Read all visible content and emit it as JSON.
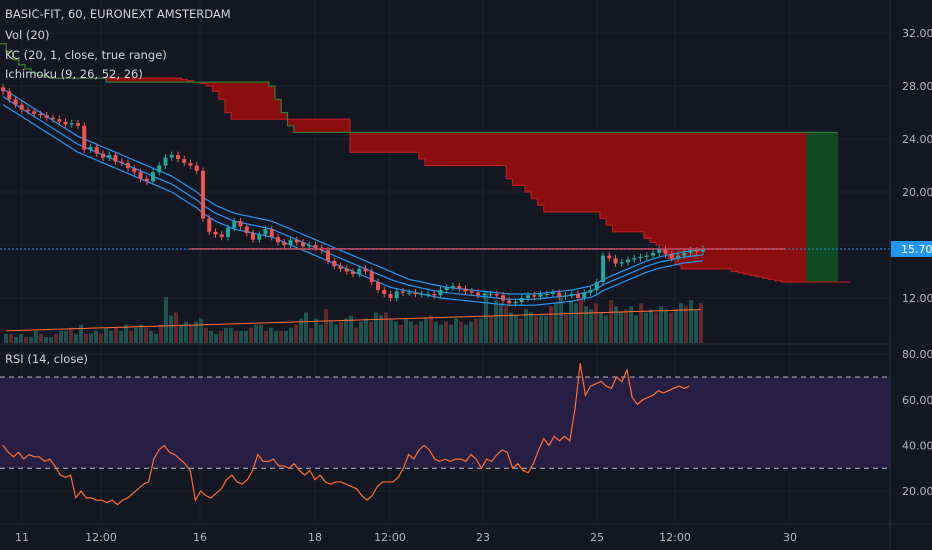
{
  "legend": {
    "symbol": "BASIC-FIT, 60, EURONEXT AMSTERDAM",
    "vol": "Vol (20)",
    "kc": "KC (20, 1, close, true range)",
    "ichimoku": "Ichimoku (9, 26, 52, 26)",
    "rsi": "RSI (14, close)"
  },
  "price_axis": {
    "ticks": [
      "32.00",
      "28.00",
      "24.00",
      "20.00",
      "12.00"
    ],
    "last_price": "15.70"
  },
  "rsi_axis": {
    "ticks": [
      "80.00",
      "60.00",
      "40.00",
      "20.00"
    ]
  },
  "time_axis": {
    "labels": [
      "11",
      "12:00",
      "16",
      "18",
      "12:00",
      "23",
      "25",
      "12:00",
      "30"
    ]
  },
  "colors": {
    "background": "#131722",
    "up": "#26a69a",
    "down": "#ef5350",
    "cloud_bear": "#8b0e0e",
    "cloud_bull": "#0d4a1f",
    "kc": "#2196f3",
    "rsi": "#ff6d2e",
    "rsi_band": "#2a1f48",
    "last_price": "#2196f3",
    "resistance": "#ff2b2b"
  },
  "chart_data": {
    "type": "candlestick",
    "price": {
      "ylim": [
        8.6,
        34.5
      ],
      "series": {
        "close": [
          27.6,
          27.0,
          26.6,
          26.2,
          26.1,
          25.9,
          25.8,
          25.6,
          25.5,
          25.3,
          25.1,
          25.2,
          25.0,
          23.2,
          23.4,
          22.9,
          22.6,
          22.8,
          22.3,
          22.2,
          21.8,
          21.5,
          21.0,
          20.8,
          21.5,
          22.0,
          22.6,
          22.8,
          22.5,
          22.2,
          22.0,
          21.6,
          18.0,
          17.0,
          16.8,
          16.6,
          17.3,
          17.8,
          17.4,
          16.9,
          16.4,
          16.8,
          17.2,
          16.6,
          16.2,
          16.0,
          16.4,
          16.2,
          15.9,
          16.0,
          15.8,
          15.6,
          14.8,
          14.4,
          14.2,
          14.0,
          13.8,
          14.2,
          14.0,
          13.2,
          12.6,
          12.3,
          12.0,
          12.5,
          12.4,
          12.4,
          12.3,
          12.3,
          12.3,
          12.2,
          12.6,
          12.8,
          12.9,
          12.7,
          12.5,
          12.4,
          12.2,
          12.3,
          12.3,
          12.2,
          11.8,
          11.6,
          11.7,
          12.0,
          12.2,
          12.1,
          12.3,
          12.3,
          12.4,
          12.1,
          12.2,
          12.3,
          12.0,
          12.4,
          12.6,
          13.2,
          15.2,
          15.0,
          14.6,
          14.7,
          14.9,
          15.0,
          15.1,
          15.2,
          15.4,
          15.7,
          15.3,
          15.0,
          15.2,
          15.4,
          15.6,
          15.5,
          15.7
        ],
        "kc_upper": [
          27.8,
          27.5,
          27.2,
          26.9,
          26.6,
          26.3,
          26.0,
          25.7,
          25.4,
          25.1,
          24.8,
          24.5,
          24.2,
          24.0,
          23.8,
          23.6,
          23.4,
          23.2,
          23.0,
          22.8,
          22.6,
          22.4,
          22.2,
          22.0,
          21.8,
          21.6,
          21.4,
          21.2,
          20.9,
          20.6,
          20.3,
          20.0,
          19.6,
          19.3,
          19.0,
          18.8,
          18.6,
          18.4,
          18.3,
          18.2,
          18.1,
          18.0,
          17.9,
          17.8,
          17.6,
          17.4,
          17.2,
          17.0,
          16.8,
          16.6,
          16.4,
          16.2,
          16.0,
          15.8,
          15.6,
          15.4,
          15.2,
          15.0,
          14.8,
          14.6,
          14.4,
          14.2,
          14.0,
          13.8,
          13.6,
          13.4,
          13.3,
          13.2,
          13.1,
          13.0,
          12.9,
          12.8,
          12.75,
          12.7,
          12.65,
          12.6,
          12.55,
          12.5,
          12.45,
          12.4,
          12.35,
          12.3,
          12.3,
          12.3,
          12.3,
          12.3,
          12.35,
          12.4,
          12.45,
          12.5,
          12.55,
          12.6,
          12.7,
          12.8,
          12.9,
          13.1,
          13.4,
          13.6,
          13.8,
          14.0,
          14.2,
          14.4,
          14.6,
          14.8,
          14.95,
          15.1,
          15.2,
          15.3,
          15.4,
          15.5,
          15.55,
          15.6,
          15.65
        ],
        "kc_basis": [
          27.2,
          26.9,
          26.6,
          26.3,
          26.0,
          25.7,
          25.4,
          25.1,
          24.8,
          24.5,
          24.2,
          23.9,
          23.6,
          23.4,
          23.2,
          23.0,
          22.8,
          22.6,
          22.4,
          22.2,
          22.0,
          21.8,
          21.6,
          21.4,
          21.2,
          21.0,
          20.8,
          20.6,
          20.3,
          20.0,
          19.7,
          19.4,
          19.0,
          18.7,
          18.4,
          18.2,
          18.0,
          17.8,
          17.7,
          17.6,
          17.5,
          17.4,
          17.3,
          17.2,
          17.0,
          16.8,
          16.6,
          16.4,
          16.2,
          16.0,
          15.8,
          15.6,
          15.4,
          15.2,
          15.0,
          14.8,
          14.6,
          14.4,
          14.2,
          14.0,
          13.8,
          13.6,
          13.4,
          13.25,
          13.1,
          12.95,
          12.85,
          12.75,
          12.65,
          12.55,
          12.45,
          12.4,
          12.35,
          12.3,
          12.25,
          12.2,
          12.15,
          12.1,
          12.05,
          12.0,
          11.95,
          11.9,
          11.9,
          11.9,
          11.9,
          11.9,
          11.95,
          12.0,
          12.05,
          12.1,
          12.15,
          12.2,
          12.3,
          12.4,
          12.5,
          12.7,
          13.0,
          13.2,
          13.4,
          13.6,
          13.8,
          14.0,
          14.2,
          14.4,
          14.55,
          14.7,
          14.8,
          14.9,
          15.0,
          15.1,
          15.15,
          15.2,
          15.25
        ],
        "kc_lower": [
          26.6,
          26.3,
          26.0,
          25.7,
          25.4,
          25.1,
          24.8,
          24.5,
          24.2,
          23.9,
          23.6,
          23.3,
          23.0,
          22.8,
          22.6,
          22.4,
          22.2,
          22.0,
          21.8,
          21.6,
          21.4,
          21.2,
          21.0,
          20.8,
          20.6,
          20.4,
          20.2,
          20.0,
          19.7,
          19.4,
          19.1,
          18.8,
          18.4,
          18.1,
          17.8,
          17.6,
          17.4,
          17.2,
          17.1,
          17.0,
          16.9,
          16.8,
          16.7,
          16.6,
          16.4,
          16.2,
          16.0,
          15.8,
          15.6,
          15.4,
          15.2,
          15.0,
          14.8,
          14.6,
          14.4,
          14.2,
          14.0,
          13.8,
          13.6,
          13.4,
          13.2,
          13.0,
          12.8,
          12.7,
          12.6,
          12.5,
          12.4,
          12.3,
          12.2,
          12.1,
          12.0,
          11.95,
          11.9,
          11.85,
          11.8,
          11.75,
          11.7,
          11.65,
          11.6,
          11.55,
          11.5,
          11.45,
          11.45,
          11.45,
          11.45,
          11.45,
          11.5,
          11.55,
          11.6,
          11.65,
          11.7,
          11.75,
          11.85,
          11.95,
          12.05,
          12.25,
          12.55,
          12.75,
          12.95,
          13.15,
          13.35,
          13.55,
          13.75,
          13.95,
          14.1,
          14.25,
          14.35,
          14.45,
          14.55,
          14.65,
          14.7,
          14.75,
          14.8
        ],
        "cloud_a": [
          31.2,
          30.6,
          30.0,
          29.6,
          29.3,
          29.0,
          28.8,
          28.7,
          28.6,
          28.6,
          28.6,
          28.6,
          28.6,
          28.6,
          28.6,
          28.6,
          28.6,
          28.6,
          28.6,
          28.6,
          28.6,
          28.6,
          28.6,
          28.6,
          28.6,
          28.6,
          28.6,
          28.6,
          28.6,
          28.5,
          28.4,
          28.3,
          28.2,
          28.0,
          27.6,
          27.0,
          26.0,
          25.5,
          25.5,
          25.5,
          25.5,
          25.5,
          25.5,
          25.5,
          25.5,
          25.5,
          25.5,
          25.5,
          25.5,
          25.5,
          25.5,
          25.5,
          25.5,
          25.5,
          25.5,
          25.5,
          23.0,
          23.0,
          23.0,
          23.0,
          23.0,
          23.0,
          23.0,
          23.0,
          23.0,
          23.0,
          23.0,
          22.5,
          22.0,
          22.0,
          22.0,
          22.0,
          22.0,
          22.0,
          22.0,
          22.0,
          22.0,
          22.0,
          22.0,
          22.0,
          22.0,
          21.0,
          20.5,
          20.5,
          20.0,
          19.5,
          19.0,
          18.5,
          18.5,
          18.5,
          18.5,
          18.5,
          18.5,
          18.5,
          18.5,
          18.5,
          18.0,
          17.5,
          17.0,
          17.0,
          17.0,
          17.0,
          17.0,
          16.5,
          16.2,
          16.0,
          15.5,
          15.0,
          14.5,
          14.2,
          14.2,
          14.2,
          14.2,
          14.2,
          14.2,
          14.2,
          14.2,
          14.0,
          13.9,
          13.8,
          13.7,
          13.6,
          13.5,
          13.4,
          13.3,
          13.2,
          13.2,
          13.2,
          13.2,
          13.2,
          13.2,
          13.2,
          13.2,
          13.2,
          13.2,
          13.2
        ],
        "cloud_b": [
          31.2,
          30.6,
          30.0,
          29.6,
          29.3,
          29.0,
          28.8,
          28.7,
          28.6,
          28.6,
          28.6,
          28.6,
          28.6,
          28.6,
          28.6,
          28.6,
          28.6,
          28.3,
          28.3,
          28.3,
          28.3,
          28.3,
          28.3,
          28.3,
          28.3,
          28.3,
          28.3,
          28.3,
          28.3,
          28.3,
          28.3,
          28.3,
          28.3,
          28.3,
          28.3,
          28.3,
          28.3,
          28.3,
          28.3,
          28.3,
          28.3,
          28.3,
          28.3,
          28.0,
          27.0,
          26.0,
          25.0,
          24.5,
          24.5,
          24.5,
          24.5,
          24.5,
          24.5,
          24.5,
          24.5,
          24.5,
          24.5,
          24.5,
          24.5,
          24.5,
          24.5,
          24.5,
          24.5,
          24.5,
          24.5,
          24.5,
          24.5,
          24.5,
          24.5,
          24.5,
          24.5,
          24.5,
          24.5,
          24.5,
          24.5,
          24.5,
          24.5,
          24.5,
          24.5,
          24.5,
          24.5,
          24.5,
          24.5,
          24.5,
          24.5,
          24.5,
          24.5,
          24.5,
          24.5,
          24.5,
          24.5,
          24.5,
          24.5,
          24.5,
          24.5,
          24.5,
          24.5,
          24.5,
          24.5,
          24.5,
          24.5,
          24.5,
          24.5,
          24.5,
          24.5,
          24.5,
          24.5,
          24.5,
          24.5,
          24.5,
          24.5,
          24.5,
          24.5,
          24.5,
          24.5,
          24.5,
          24.5,
          24.5,
          24.5,
          24.5,
          24.5,
          24.5,
          24.5,
          24.5,
          24.5,
          24.5,
          24.5,
          24.5,
          24.5,
          24.5,
          24.5,
          24.5,
          24.5,
          24.5
        ],
        "resistance": 15.7
      }
    },
    "rsi": {
      "ylim": [
        6,
        84
      ],
      "overbought": 70,
      "oversold": 30,
      "values": [
        40,
        37,
        35,
        37,
        34,
        36,
        35,
        35,
        33,
        34,
        31,
        27,
        26,
        27,
        17,
        20,
        17,
        17,
        16,
        16,
        15,
        16,
        14,
        16,
        17,
        19,
        21,
        23,
        24,
        34,
        38,
        40,
        37,
        36,
        34,
        32,
        29,
        16,
        20,
        18,
        17,
        19,
        21,
        25,
        27,
        24,
        23,
        25,
        29,
        36,
        33,
        33,
        34,
        31,
        31,
        30,
        32,
        29,
        27,
        29,
        25,
        27,
        24,
        23,
        24,
        24,
        23,
        22,
        21,
        18,
        16,
        18,
        22,
        24,
        24,
        24,
        26,
        30,
        36,
        34,
        38,
        40,
        38,
        34,
        33,
        34,
        33,
        34,
        34,
        33,
        36,
        34,
        30,
        34,
        33,
        36,
        38,
        37,
        30,
        32,
        29,
        28,
        32,
        38,
        43,
        40,
        44,
        42,
        44,
        42,
        56,
        76,
        62,
        66,
        67,
        68,
        66,
        65,
        70,
        68,
        73,
        61,
        58,
        60,
        61,
        62,
        64,
        63,
        64,
        65,
        66,
        65,
        66
      ]
    },
    "volume": {
      "values": [
        3,
        3,
        2,
        3,
        2,
        2,
        4,
        3,
        2,
        2,
        3,
        4,
        4,
        5,
        3,
        6,
        3,
        3,
        4,
        3,
        5,
        4,
        5,
        4,
        6,
        4,
        5,
        6,
        5,
        4,
        3,
        6,
        15,
        9,
        10,
        6,
        7,
        6,
        7,
        8,
        5,
        4,
        3,
        4,
        5,
        5,
        4,
        4,
        4,
        5,
        6,
        6,
        4,
        5,
        4,
        4,
        4,
        5,
        6,
        8,
        10,
        5,
        8,
        6,
        11,
        7,
        6,
        7,
        8,
        9,
        5,
        7,
        8,
        7,
        10,
        9,
        10,
        8,
        7,
        6,
        8,
        7,
        6,
        7,
        8,
        9,
        7,
        6,
        7,
        6,
        8,
        7,
        6,
        7,
        8,
        8,
        17,
        9,
        14,
        13,
        12,
        10,
        9,
        8,
        11,
        10,
        9,
        9,
        9,
        12,
        13,
        15,
        10,
        14,
        13,
        15,
        12,
        11,
        13,
        10,
        9,
        14,
        12,
        10,
        11,
        12,
        9,
        13,
        10,
        11,
        10,
        12,
        11,
        10,
        11,
        13,
        12,
        14,
        11,
        13
      ]
    }
  }
}
